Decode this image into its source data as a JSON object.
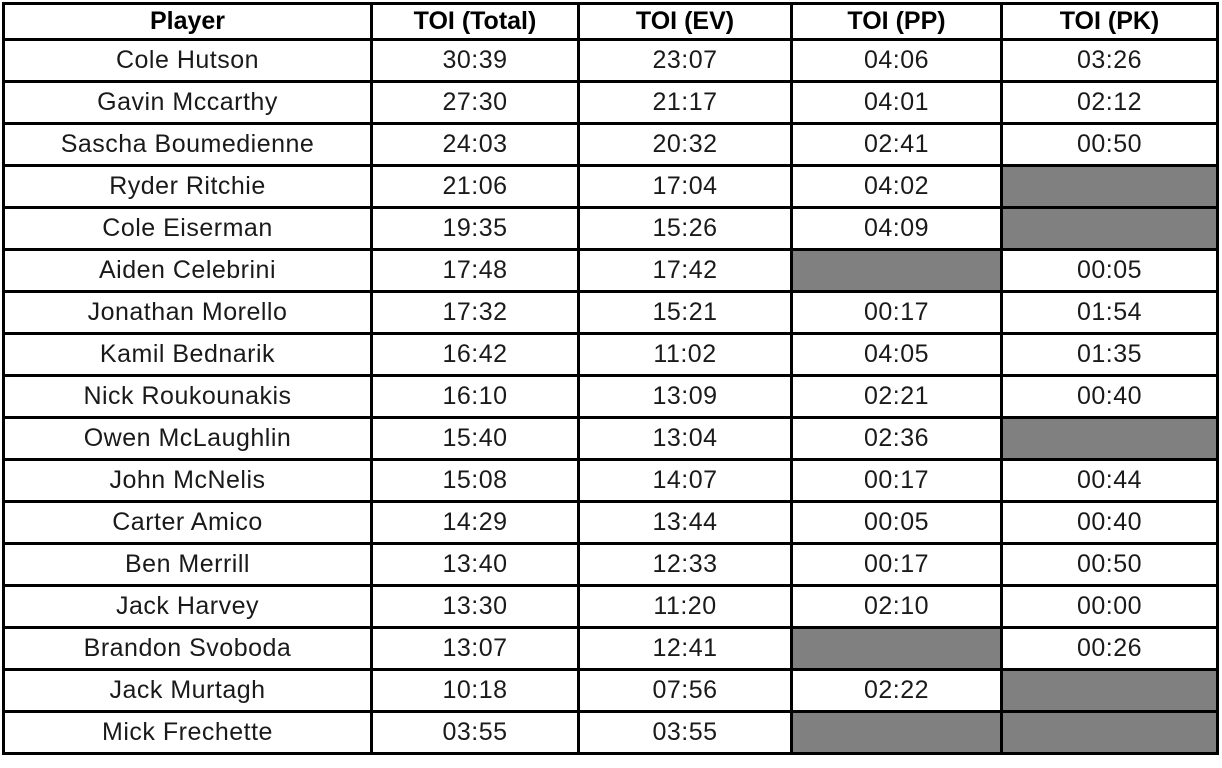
{
  "table": {
    "columns": [
      {
        "key": "player",
        "label": "Player"
      },
      {
        "key": "toi-total",
        "label": "TOI (Total)"
      },
      {
        "key": "toi-ev",
        "label": "TOI (EV)"
      },
      {
        "key": "toi-pp",
        "label": "TOI (PP)"
      },
      {
        "key": "toi-pk",
        "label": "TOI (PK)"
      }
    ],
    "rows": [
      {
        "player": "Cole Hutson",
        "total": "30:39",
        "ev": "23:07",
        "pp": "04:06",
        "pk": "03:26"
      },
      {
        "player": "Gavin Mccarthy",
        "total": "27:30",
        "ev": "21:17",
        "pp": "04:01",
        "pk": "02:12"
      },
      {
        "player": "Sascha Boumedienne",
        "total": "24:03",
        "ev": "20:32",
        "pp": "02:41",
        "pk": "00:50"
      },
      {
        "player": "Ryder Ritchie",
        "total": "21:06",
        "ev": "17:04",
        "pp": "04:02",
        "pk": null
      },
      {
        "player": "Cole Eiserman",
        "total": "19:35",
        "ev": "15:26",
        "pp": "04:09",
        "pk": null
      },
      {
        "player": "Aiden Celebrini",
        "total": "17:48",
        "ev": "17:42",
        "pp": null,
        "pk": "00:05"
      },
      {
        "player": "Jonathan Morello",
        "total": "17:32",
        "ev": "15:21",
        "pp": "00:17",
        "pk": "01:54"
      },
      {
        "player": "Kamil Bednarik",
        "total": "16:42",
        "ev": "11:02",
        "pp": "04:05",
        "pk": "01:35"
      },
      {
        "player": "Nick Roukounakis",
        "total": "16:10",
        "ev": "13:09",
        "pp": "02:21",
        "pk": "00:40"
      },
      {
        "player": "Owen McLaughlin",
        "total": "15:40",
        "ev": "13:04",
        "pp": "02:36",
        "pk": null
      },
      {
        "player": "John McNelis",
        "total": "15:08",
        "ev": "14:07",
        "pp": "00:17",
        "pk": "00:44"
      },
      {
        "player": "Carter Amico",
        "total": "14:29",
        "ev": "13:44",
        "pp": "00:05",
        "pk": "00:40"
      },
      {
        "player": "Ben Merrill",
        "total": "13:40",
        "ev": "12:33",
        "pp": "00:17",
        "pk": "00:50"
      },
      {
        "player": "Jack Harvey",
        "total": "13:30",
        "ev": "11:20",
        "pp": "02:10",
        "pk": "00:00"
      },
      {
        "player": "Brandon Svoboda",
        "total": "13:07",
        "ev": "12:41",
        "pp": null,
        "pk": "00:26"
      },
      {
        "player": "Jack Murtagh",
        "total": "10:18",
        "ev": "07:56",
        "pp": "02:22",
        "pk": null
      },
      {
        "player": "Mick Frechette",
        "total": "03:55",
        "ev": "03:55",
        "pp": null,
        "pk": null
      }
    ],
    "colors": {
      "empty_cell": "#808080",
      "border": "#000000",
      "background": "#ffffff"
    }
  }
}
